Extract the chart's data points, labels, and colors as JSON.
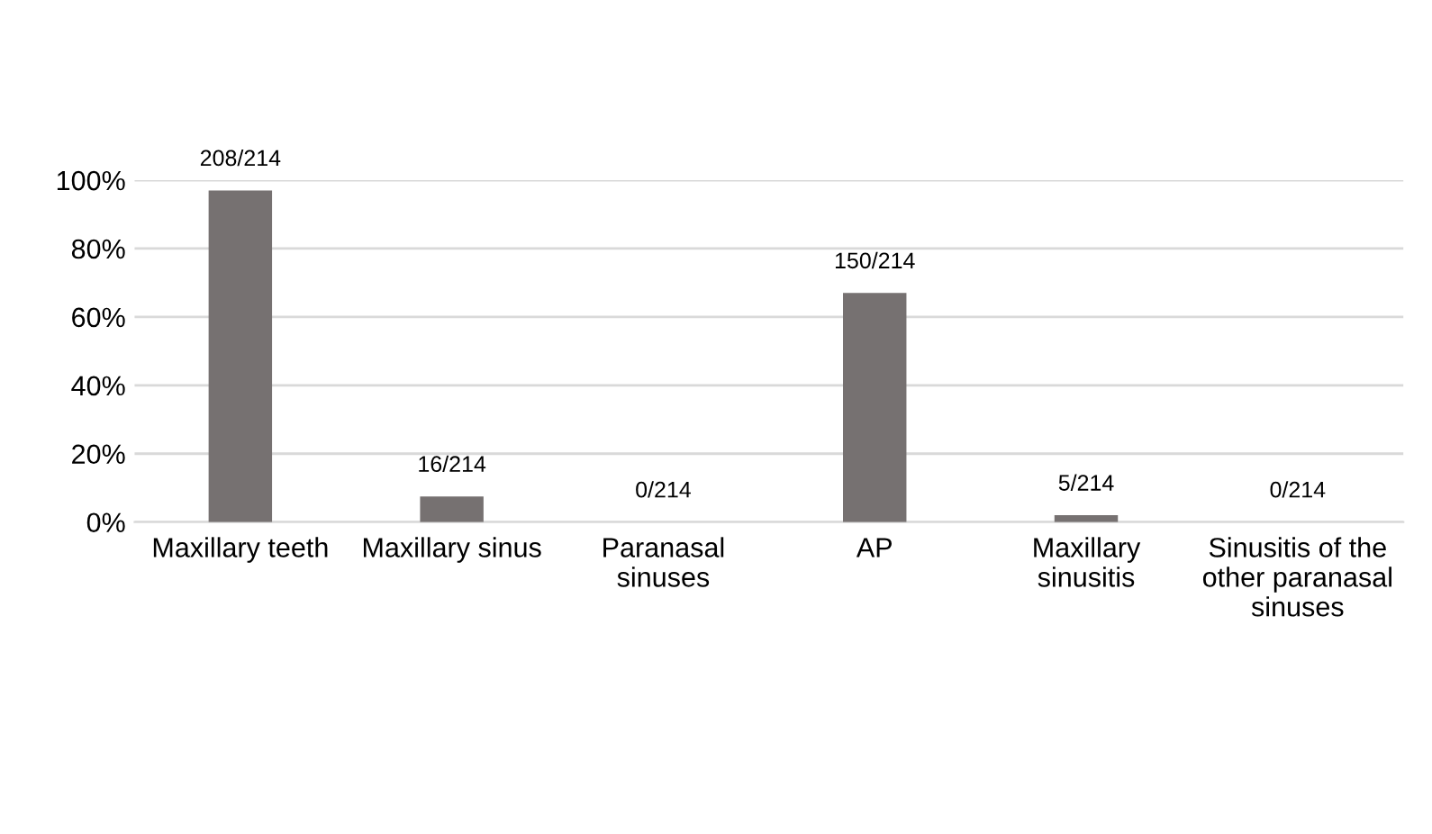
{
  "chart_data": {
    "type": "bar",
    "categories": [
      "Maxillary teeth",
      "Maxillary sinus",
      "Paranasal\nsinuses",
      "AP",
      "Maxillary\nsinusitis",
      "Sinusitis of the\nother paranasal\nsinuses"
    ],
    "values": [
      97,
      7.5,
      0,
      67,
      2,
      0
    ],
    "value_labels": [
      "208/214",
      "16/214",
      "0/214",
      "150/214",
      "5/214",
      "0/214"
    ],
    "color": "#767171",
    "ylim": [
      0,
      100
    ],
    "yticks": [
      {
        "value": 0,
        "label": "0%"
      },
      {
        "value": 20,
        "label": "20%"
      },
      {
        "value": 40,
        "label": "40%"
      },
      {
        "value": 60,
        "label": "60%"
      },
      {
        "value": 80,
        "label": "80%"
      },
      {
        "value": 100,
        "label": "100%"
      }
    ],
    "grid": "y"
  }
}
